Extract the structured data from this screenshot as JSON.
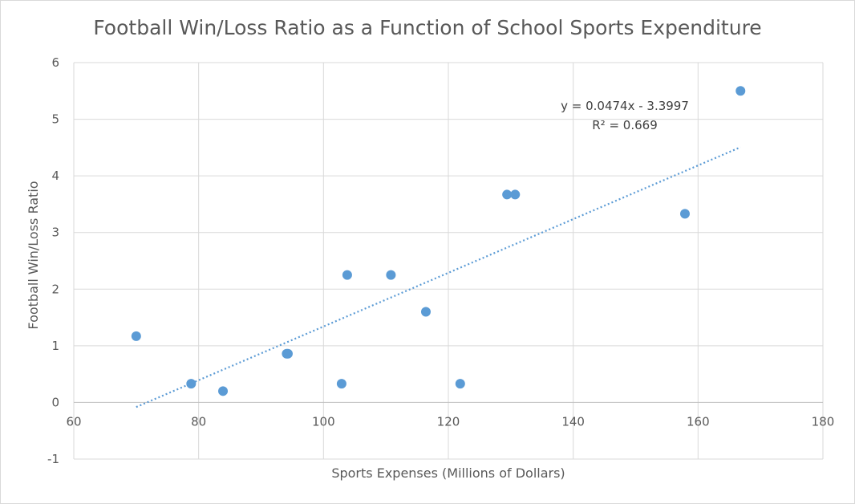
{
  "chart_data": {
    "type": "scatter",
    "title": "Football Win/Loss Ratio as a Function of School Sports Expenditure",
    "xlabel": "Sports Expenses (Millions of Dollars)",
    "ylabel": "Football Win/Loss Ratio",
    "xlim": [
      60,
      180
    ],
    "ylim": [
      -1,
      6
    ],
    "x_ticks": [
      "60",
      "80",
      "100",
      "120",
      "140",
      "160",
      "180"
    ],
    "y_ticks": [
      "6",
      "5",
      "4",
      "3",
      "2",
      "1",
      "0",
      "-1"
    ],
    "grid": true,
    "points": [
      {
        "x": 70.0,
        "y": 1.17
      },
      {
        "x": 78.8,
        "y": 0.33
      },
      {
        "x": 83.9,
        "y": 0.2
      },
      {
        "x": 94.1,
        "y": 0.86
      },
      {
        "x": 94.3,
        "y": 0.86
      },
      {
        "x": 102.9,
        "y": 0.33
      },
      {
        "x": 103.8,
        "y": 2.25
      },
      {
        "x": 110.8,
        "y": 2.25
      },
      {
        "x": 116.4,
        "y": 1.6
      },
      {
        "x": 121.9,
        "y": 0.33
      },
      {
        "x": 129.4,
        "y": 3.67
      },
      {
        "x": 130.7,
        "y": 3.67
      },
      {
        "x": 157.9,
        "y": 3.33
      },
      {
        "x": 166.8,
        "y": 5.5
      }
    ],
    "trendline": {
      "type": "linear",
      "slope": 0.0474,
      "intercept": -3.3997,
      "x_range": [
        70,
        166.8
      ],
      "equation": "y = 0.0474x - 3.3997",
      "r_squared": "R² = 0.669"
    },
    "colors": {
      "points": "#5b9bd5",
      "trendline": "#5b9bd5",
      "grid": "#d9d9d9",
      "text": "#595959"
    }
  }
}
